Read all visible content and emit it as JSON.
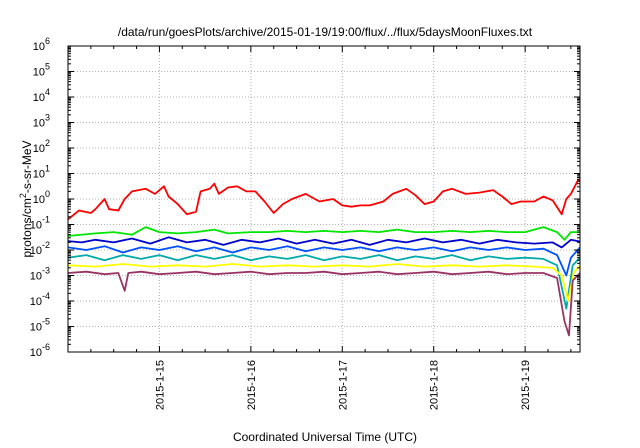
{
  "chart_data": {
    "type": "line",
    "title": "/data/run/goesPlots/archive/2015-01-19/19:00/flux/../flux/5daysMoonFluxes.txt",
    "xlabel": "Coordinated Universal Time (UTC)",
    "ylabel": "protons/cm2-s-sr-MeV",
    "ylabel_parts": {
      "main": "protons/cm",
      "sup": "2",
      "rest": "-s-sr-MeV"
    },
    "yscale": "log",
    "xlim": [
      0,
      5.6
    ],
    "ylim_exponent": [
      -6,
      6
    ],
    "y_tick_exponents": [
      -6,
      -5,
      -4,
      -3,
      -2,
      -1,
      0,
      1,
      2,
      3,
      4,
      5,
      6
    ],
    "y_tick_base": "10",
    "x_ticks": [
      {
        "x": 1,
        "label": "2015-1-15"
      },
      {
        "x": 2,
        "label": "2015-1-16"
      },
      {
        "x": 3,
        "label": "2015-1-17"
      },
      {
        "x": 4,
        "label": "2015-1-18"
      },
      {
        "x": 5,
        "label": "2015-1-19"
      }
    ],
    "grid": true,
    "series": [
      {
        "color": "#ff0000",
        "points": [
          [
            0,
            -0.8
          ],
          [
            0.12,
            -0.45
          ],
          [
            0.25,
            -0.55
          ],
          [
            0.3,
            -0.4
          ],
          [
            0.4,
            0.0
          ],
          [
            0.45,
            -0.4
          ],
          [
            0.55,
            -0.45
          ],
          [
            0.62,
            0.0
          ],
          [
            0.7,
            0.3
          ],
          [
            0.85,
            0.4
          ],
          [
            0.95,
            0.2
          ],
          [
            1.05,
            0.5
          ],
          [
            1.1,
            0.1
          ],
          [
            1.2,
            -0.2
          ],
          [
            1.3,
            -0.6
          ],
          [
            1.4,
            -0.5
          ],
          [
            1.45,
            0.3
          ],
          [
            1.55,
            0.4
          ],
          [
            1.6,
            0.6
          ],
          [
            1.65,
            0.2
          ],
          [
            1.75,
            0.45
          ],
          [
            1.85,
            0.5
          ],
          [
            1.95,
            0.3
          ],
          [
            2.05,
            0.3
          ],
          [
            2.15,
            -0.1
          ],
          [
            2.25,
            -0.55
          ],
          [
            2.35,
            -0.2
          ],
          [
            2.45,
            0.0
          ],
          [
            2.6,
            0.2
          ],
          [
            2.75,
            -0.1
          ],
          [
            2.9,
            0.0
          ],
          [
            3.0,
            -0.25
          ],
          [
            3.1,
            -0.3
          ],
          [
            3.2,
            -0.25
          ],
          [
            3.3,
            -0.25
          ],
          [
            3.45,
            -0.1
          ],
          [
            3.55,
            0.2
          ],
          [
            3.7,
            0.4
          ],
          [
            3.8,
            0.15
          ],
          [
            3.9,
            -0.2
          ],
          [
            4.0,
            -0.1
          ],
          [
            4.1,
            0.3
          ],
          [
            4.2,
            0.4
          ],
          [
            4.35,
            0.2
          ],
          [
            4.5,
            0.25
          ],
          [
            4.65,
            0.35
          ],
          [
            4.75,
            0.1
          ],
          [
            4.85,
            -0.2
          ],
          [
            4.95,
            -0.1
          ],
          [
            5.1,
            -0.1
          ],
          [
            5.2,
            0.1
          ],
          [
            5.3,
            -0.05
          ],
          [
            5.4,
            -0.6
          ],
          [
            5.45,
            0.0
          ],
          [
            5.5,
            0.2
          ],
          [
            5.58,
            0.75
          ],
          [
            5.65,
            0.6
          ],
          [
            5.7,
            0.7
          ],
          [
            5.78,
            0.3
          ],
          [
            5.85,
            0.3
          ]
        ]
      },
      {
        "color": "#00e600",
        "points": [
          [
            0,
            -1.45
          ],
          [
            0.3,
            -1.35
          ],
          [
            0.5,
            -1.3
          ],
          [
            0.7,
            -1.4
          ],
          [
            0.85,
            -1.1
          ],
          [
            1.0,
            -1.3
          ],
          [
            1.2,
            -1.35
          ],
          [
            1.4,
            -1.3
          ],
          [
            1.6,
            -1.2
          ],
          [
            1.75,
            -1.35
          ],
          [
            2.0,
            -1.3
          ],
          [
            2.2,
            -1.3
          ],
          [
            2.4,
            -1.25
          ],
          [
            2.6,
            -1.3
          ],
          [
            2.8,
            -1.25
          ],
          [
            3.0,
            -1.3
          ],
          [
            3.2,
            -1.25
          ],
          [
            3.4,
            -1.3
          ],
          [
            3.6,
            -1.2
          ],
          [
            3.8,
            -1.3
          ],
          [
            4.0,
            -1.3
          ],
          [
            4.2,
            -1.25
          ],
          [
            4.4,
            -1.3
          ],
          [
            4.6,
            -1.25
          ],
          [
            4.8,
            -1.3
          ],
          [
            5.0,
            -1.3
          ],
          [
            5.2,
            -1.1
          ],
          [
            5.35,
            -1.3
          ],
          [
            5.43,
            -1.6
          ],
          [
            5.5,
            -1.3
          ],
          [
            5.6,
            -1.3
          ],
          [
            5.7,
            -1.25
          ],
          [
            5.85,
            -1.3
          ]
        ]
      },
      {
        "color": "#0000cc",
        "points": [
          [
            0,
            -1.65
          ],
          [
            0.15,
            -1.7
          ],
          [
            0.3,
            -1.6
          ],
          [
            0.5,
            -1.7
          ],
          [
            0.7,
            -1.55
          ],
          [
            0.9,
            -1.75
          ],
          [
            1.1,
            -1.5
          ],
          [
            1.3,
            -1.7
          ],
          [
            1.5,
            -1.6
          ],
          [
            1.7,
            -1.8
          ],
          [
            1.9,
            -1.6
          ],
          [
            2.1,
            -1.7
          ],
          [
            2.3,
            -1.55
          ],
          [
            2.5,
            -1.75
          ],
          [
            2.7,
            -1.6
          ],
          [
            2.9,
            -1.75
          ],
          [
            3.1,
            -1.6
          ],
          [
            3.3,
            -1.8
          ],
          [
            3.5,
            -1.6
          ],
          [
            3.7,
            -1.7
          ],
          [
            3.9,
            -1.55
          ],
          [
            4.1,
            -1.7
          ],
          [
            4.3,
            -1.6
          ],
          [
            4.5,
            -1.75
          ],
          [
            4.7,
            -1.6
          ],
          [
            4.9,
            -1.7
          ],
          [
            5.1,
            -1.75
          ],
          [
            5.3,
            -1.7
          ],
          [
            5.4,
            -1.9
          ],
          [
            5.5,
            -1.6
          ],
          [
            5.65,
            -1.7
          ],
          [
            5.85,
            -1.65
          ]
        ]
      },
      {
        "color": "#0050ff",
        "points": [
          [
            0,
            -1.9
          ],
          [
            0.2,
            -2.0
          ],
          [
            0.4,
            -1.85
          ],
          [
            0.6,
            -2.1
          ],
          [
            0.8,
            -1.9
          ],
          [
            1.0,
            -2.0
          ],
          [
            1.2,
            -1.85
          ],
          [
            1.4,
            -2.05
          ],
          [
            1.6,
            -1.9
          ],
          [
            1.8,
            -2.1
          ],
          [
            2.0,
            -1.9
          ],
          [
            2.2,
            -2.0
          ],
          [
            2.4,
            -1.85
          ],
          [
            2.6,
            -2.05
          ],
          [
            2.8,
            -1.9
          ],
          [
            3.0,
            -2.0
          ],
          [
            3.2,
            -1.9
          ],
          [
            3.4,
            -2.05
          ],
          [
            3.6,
            -1.9
          ],
          [
            3.8,
            -2.0
          ],
          [
            4.0,
            -1.9
          ],
          [
            4.2,
            -2.05
          ],
          [
            4.4,
            -1.9
          ],
          [
            4.6,
            -2.0
          ],
          [
            4.8,
            -1.9
          ],
          [
            5.0,
            -2.0
          ],
          [
            5.2,
            -1.95
          ],
          [
            5.35,
            -2.2
          ],
          [
            5.45,
            -3.0
          ],
          [
            5.5,
            -2.3
          ],
          [
            5.6,
            -1.9
          ],
          [
            5.7,
            -2.0
          ],
          [
            5.85,
            -1.95
          ]
        ]
      },
      {
        "color": "#00aaaa",
        "points": [
          [
            0,
            -2.3
          ],
          [
            0.2,
            -2.2
          ],
          [
            0.4,
            -2.4
          ],
          [
            0.6,
            -2.2
          ],
          [
            0.8,
            -2.35
          ],
          [
            1.0,
            -2.2
          ],
          [
            1.2,
            -2.4
          ],
          [
            1.4,
            -2.2
          ],
          [
            1.6,
            -2.35
          ],
          [
            1.8,
            -2.2
          ],
          [
            2.0,
            -2.4
          ],
          [
            2.2,
            -2.25
          ],
          [
            2.4,
            -2.35
          ],
          [
            2.6,
            -2.2
          ],
          [
            2.8,
            -2.4
          ],
          [
            3.0,
            -2.25
          ],
          [
            3.2,
            -2.35
          ],
          [
            3.4,
            -2.2
          ],
          [
            3.6,
            -2.4
          ],
          [
            3.8,
            -2.25
          ],
          [
            4.0,
            -2.35
          ],
          [
            4.2,
            -2.2
          ],
          [
            4.4,
            -2.4
          ],
          [
            4.6,
            -2.25
          ],
          [
            4.8,
            -2.35
          ],
          [
            5.0,
            -2.3
          ],
          [
            5.2,
            -2.35
          ],
          [
            5.35,
            -2.6
          ],
          [
            5.45,
            -4.3
          ],
          [
            5.52,
            -2.6
          ],
          [
            5.6,
            -2.3
          ],
          [
            5.75,
            -2.3
          ],
          [
            5.85,
            -2.3
          ]
        ]
      },
      {
        "color": "#ffff00",
        "points": [
          [
            0,
            -2.6
          ],
          [
            0.3,
            -2.65
          ],
          [
            0.6,
            -2.55
          ],
          [
            0.9,
            -2.65
          ],
          [
            1.2,
            -2.6
          ],
          [
            1.5,
            -2.65
          ],
          [
            1.8,
            -2.55
          ],
          [
            2.1,
            -2.65
          ],
          [
            2.4,
            -2.6
          ],
          [
            2.7,
            -2.65
          ],
          [
            3.0,
            -2.6
          ],
          [
            3.3,
            -2.65
          ],
          [
            3.6,
            -2.55
          ],
          [
            3.9,
            -2.65
          ],
          [
            4.2,
            -2.6
          ],
          [
            4.5,
            -2.65
          ],
          [
            4.8,
            -2.6
          ],
          [
            5.1,
            -2.65
          ],
          [
            5.3,
            -2.7
          ],
          [
            5.4,
            -3.0
          ],
          [
            5.47,
            -4.0
          ],
          [
            5.53,
            -2.9
          ],
          [
            5.6,
            -2.6
          ],
          [
            5.85,
            -2.6
          ]
        ]
      },
      {
        "color": "#993366",
        "points": [
          [
            0,
            -2.9
          ],
          [
            0.2,
            -2.85
          ],
          [
            0.4,
            -2.95
          ],
          [
            0.55,
            -2.9
          ],
          [
            0.62,
            -3.6
          ],
          [
            0.66,
            -2.9
          ],
          [
            0.8,
            -2.85
          ],
          [
            1.0,
            -2.95
          ],
          [
            1.2,
            -2.9
          ],
          [
            1.4,
            -2.85
          ],
          [
            1.6,
            -2.95
          ],
          [
            1.8,
            -2.9
          ],
          [
            2.0,
            -2.85
          ],
          [
            2.2,
            -2.95
          ],
          [
            2.4,
            -2.9
          ],
          [
            2.6,
            -2.9
          ],
          [
            2.8,
            -2.85
          ],
          [
            3.0,
            -2.95
          ],
          [
            3.2,
            -2.9
          ],
          [
            3.4,
            -2.85
          ],
          [
            3.6,
            -2.95
          ],
          [
            3.8,
            -2.9
          ],
          [
            4.0,
            -2.85
          ],
          [
            4.2,
            -2.95
          ],
          [
            4.4,
            -2.9
          ],
          [
            4.6,
            -2.85
          ],
          [
            4.8,
            -2.95
          ],
          [
            5.0,
            -2.9
          ],
          [
            5.2,
            -2.9
          ],
          [
            5.35,
            -3.1
          ],
          [
            5.43,
            -4.8
          ],
          [
            5.48,
            -5.35
          ],
          [
            5.52,
            -3.2
          ],
          [
            5.6,
            -2.9
          ],
          [
            5.7,
            -2.95
          ],
          [
            5.85,
            -2.9
          ]
        ]
      }
    ]
  }
}
